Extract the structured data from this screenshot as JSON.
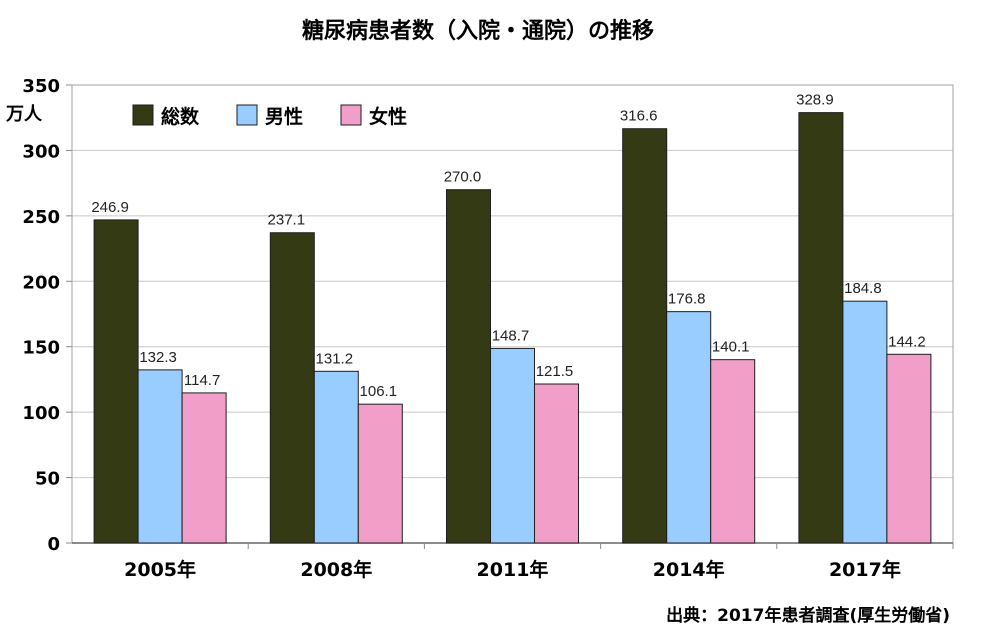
{
  "chart_data": {
    "type": "bar",
    "title": "糖尿病患者数（入院・通院）の推移",
    "ylabel": "万人",
    "ylim": [
      0,
      350
    ],
    "yticks": [
      0,
      50,
      100,
      150,
      200,
      250,
      300,
      350
    ],
    "categories": [
      "2005年",
      "2008年",
      "2011年",
      "2014年",
      "2017年"
    ],
    "series": [
      {
        "name": "総数",
        "color": "#333a14",
        "values": [
          246.9,
          237.1,
          270.0,
          316.6,
          328.9
        ],
        "labels": [
          "246.9",
          "237.1",
          "270.0",
          "316.6",
          "328.9"
        ]
      },
      {
        "name": "男性",
        "color": "#99ccff",
        "values": [
          132.3,
          131.2,
          148.7,
          176.8,
          184.8
        ],
        "labels": [
          "132.3",
          "131.2",
          "148.7",
          "176.8",
          "184.8"
        ]
      },
      {
        "name": "女性",
        "color": "#f19ec9",
        "values": [
          114.7,
          106.1,
          121.5,
          140.1,
          144.2
        ],
        "labels": [
          "114.7",
          "106.1",
          "121.5",
          "140.1",
          "144.2"
        ]
      }
    ],
    "grid": true,
    "legend_position": "top-left"
  },
  "source_note": "出典：2017年患者調査(厚生労働省)"
}
